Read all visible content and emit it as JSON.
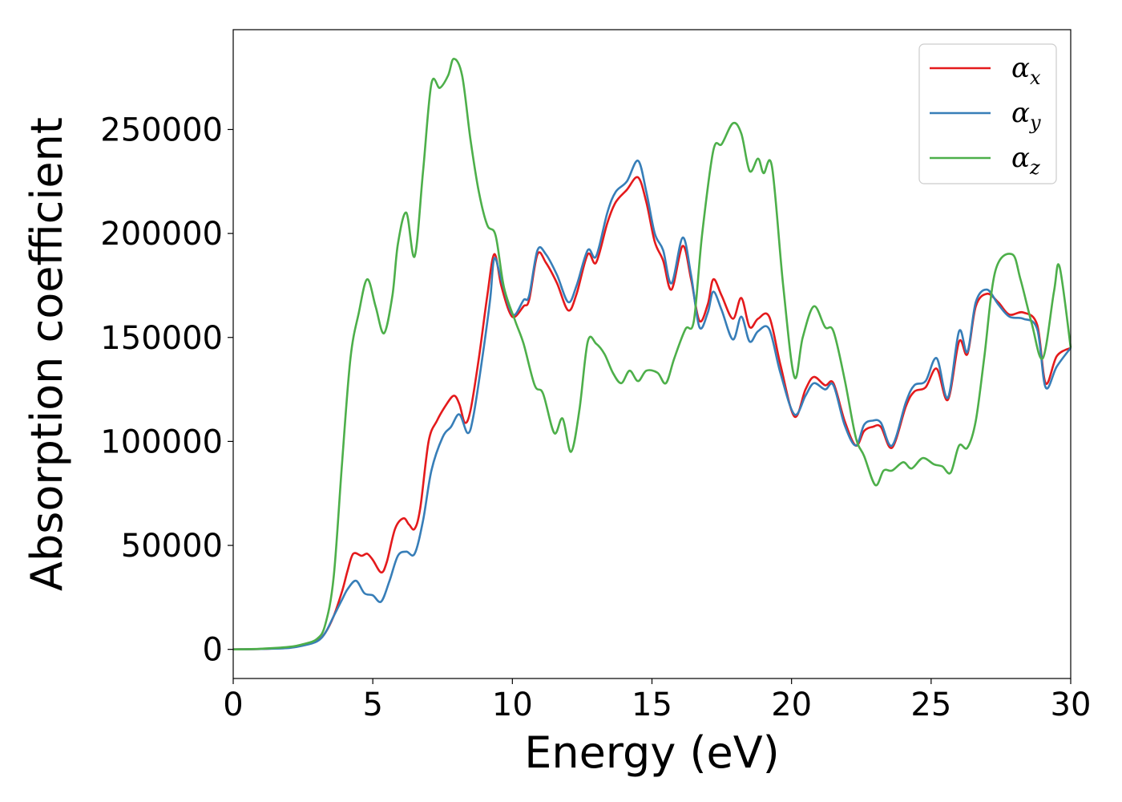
{
  "chart_data": {
    "type": "line",
    "xlabel": "Energy (eV)",
    "ylabel": "Absorption coefficient",
    "xlim": [
      0,
      30
    ],
    "ylim": [
      -14000,
      298000
    ],
    "xticks": [
      "0",
      "5",
      "10",
      "15",
      "20",
      "25",
      "30"
    ],
    "yticks": [
      "0",
      "50000",
      "100000",
      "150000",
      "200000",
      "250000"
    ],
    "grid": false,
    "legend_position": "top-right",
    "series": [
      {
        "name": "α_x",
        "label_main": "α",
        "label_sub": "x",
        "color": "#e41a1c",
        "points": [
          [
            0,
            0
          ],
          [
            1,
            200
          ],
          [
            2,
            800
          ],
          [
            2.5,
            2000
          ],
          [
            3,
            4000
          ],
          [
            3.3,
            8000
          ],
          [
            3.6,
            16000
          ],
          [
            3.9,
            28000
          ],
          [
            4.1,
            38000
          ],
          [
            4.3,
            46000
          ],
          [
            4.6,
            45000
          ],
          [
            4.8,
            46000
          ],
          [
            5.0,
            43000
          ],
          [
            5.3,
            37000
          ],
          [
            5.5,
            42000
          ],
          [
            5.8,
            58000
          ],
          [
            6.1,
            63000
          ],
          [
            6.3,
            60000
          ],
          [
            6.5,
            58000
          ],
          [
            6.7,
            68000
          ],
          [
            7.0,
            100000
          ],
          [
            7.3,
            110000
          ],
          [
            7.6,
            117000
          ],
          [
            7.9,
            122000
          ],
          [
            8.1,
            118000
          ],
          [
            8.3,
            109000
          ],
          [
            8.5,
            115000
          ],
          [
            8.8,
            140000
          ],
          [
            9.1,
            170000
          ],
          [
            9.35,
            190000
          ],
          [
            9.6,
            175000
          ],
          [
            9.9,
            162000
          ],
          [
            10.1,
            160000
          ],
          [
            10.4,
            165000
          ],
          [
            10.6,
            168000
          ],
          [
            10.9,
            190000
          ],
          [
            11.2,
            186000
          ],
          [
            11.6,
            176000
          ],
          [
            12.0,
            163000
          ],
          [
            12.3,
            171000
          ],
          [
            12.7,
            190000
          ],
          [
            13.0,
            186000
          ],
          [
            13.4,
            205000
          ],
          [
            13.7,
            215000
          ],
          [
            14.1,
            221000
          ],
          [
            14.5,
            227000
          ],
          [
            14.8,
            215000
          ],
          [
            15.1,
            196000
          ],
          [
            15.4,
            187000
          ],
          [
            15.7,
            173000
          ],
          [
            16.1,
            194000
          ],
          [
            16.4,
            178000
          ],
          [
            16.7,
            158000
          ],
          [
            17.0,
            166000
          ],
          [
            17.2,
            178000
          ],
          [
            17.5,
            170000
          ],
          [
            17.9,
            159000
          ],
          [
            18.2,
            169000
          ],
          [
            18.5,
            155000
          ],
          [
            18.8,
            159000
          ],
          [
            19.2,
            160000
          ],
          [
            19.6,
            137000
          ],
          [
            20.1,
            112000
          ],
          [
            20.5,
            125000
          ],
          [
            20.8,
            131000
          ],
          [
            21.2,
            127000
          ],
          [
            21.5,
            128000
          ],
          [
            21.9,
            110000
          ],
          [
            22.3,
            98000
          ],
          [
            22.6,
            105000
          ],
          [
            22.9,
            107000
          ],
          [
            23.2,
            107000
          ],
          [
            23.6,
            97000
          ],
          [
            24.1,
            117000
          ],
          [
            24.4,
            124000
          ],
          [
            24.8,
            126000
          ],
          [
            25.2,
            135000
          ],
          [
            25.6,
            120000
          ],
          [
            26.0,
            148000
          ],
          [
            26.3,
            142000
          ],
          [
            26.6,
            165000
          ],
          [
            27.0,
            171000
          ],
          [
            27.4,
            167000
          ],
          [
            27.8,
            161000
          ],
          [
            28.3,
            162000
          ],
          [
            28.8,
            156000
          ],
          [
            29.1,
            128000
          ],
          [
            29.5,
            141000
          ],
          [
            30.0,
            145000
          ]
        ]
      },
      {
        "name": "α_y",
        "label_main": "α",
        "label_sub": "y",
        "color": "#377eb8",
        "points": [
          [
            0,
            0
          ],
          [
            1,
            200
          ],
          [
            2,
            700
          ],
          [
            2.5,
            1800
          ],
          [
            3,
            3800
          ],
          [
            3.3,
            8000
          ],
          [
            3.6,
            16000
          ],
          [
            3.9,
            24000
          ],
          [
            4.1,
            29000
          ],
          [
            4.4,
            33000
          ],
          [
            4.7,
            27000
          ],
          [
            5.0,
            26000
          ],
          [
            5.3,
            23000
          ],
          [
            5.6,
            33000
          ],
          [
            5.9,
            45000
          ],
          [
            6.2,
            47000
          ],
          [
            6.5,
            46000
          ],
          [
            6.8,
            62000
          ],
          [
            7.1,
            86000
          ],
          [
            7.5,
            102000
          ],
          [
            7.8,
            107000
          ],
          [
            8.1,
            113000
          ],
          [
            8.4,
            104000
          ],
          [
            8.6,
            112000
          ],
          [
            8.9,
            138000
          ],
          [
            9.2,
            168000
          ],
          [
            9.35,
            188000
          ],
          [
            9.6,
            178000
          ],
          [
            9.9,
            164000
          ],
          [
            10.1,
            161000
          ],
          [
            10.4,
            168000
          ],
          [
            10.6,
            170000
          ],
          [
            10.9,
            192000
          ],
          [
            11.2,
            190000
          ],
          [
            11.6,
            180000
          ],
          [
            12.0,
            167000
          ],
          [
            12.3,
            175000
          ],
          [
            12.7,
            192000
          ],
          [
            13.0,
            189000
          ],
          [
            13.4,
            210000
          ],
          [
            13.7,
            220000
          ],
          [
            14.1,
            225000
          ],
          [
            14.5,
            235000
          ],
          [
            14.8,
            220000
          ],
          [
            15.1,
            200000
          ],
          [
            15.4,
            192000
          ],
          [
            15.7,
            176000
          ],
          [
            16.1,
            198000
          ],
          [
            16.4,
            180000
          ],
          [
            16.7,
            155000
          ],
          [
            17.0,
            162000
          ],
          [
            17.2,
            172000
          ],
          [
            17.5,
            163000
          ],
          [
            17.9,
            149000
          ],
          [
            18.2,
            160000
          ],
          [
            18.5,
            148000
          ],
          [
            18.8,
            153000
          ],
          [
            19.2,
            154000
          ],
          [
            19.6,
            133000
          ],
          [
            20.1,
            113000
          ],
          [
            20.5,
            122000
          ],
          [
            20.8,
            128000
          ],
          [
            21.2,
            125000
          ],
          [
            21.5,
            127000
          ],
          [
            21.9,
            108000
          ],
          [
            22.3,
            98000
          ],
          [
            22.6,
            108000
          ],
          [
            22.9,
            110000
          ],
          [
            23.2,
            109000
          ],
          [
            23.6,
            98000
          ],
          [
            24.1,
            119000
          ],
          [
            24.4,
            127000
          ],
          [
            24.8,
            129000
          ],
          [
            25.2,
            140000
          ],
          [
            25.6,
            121000
          ],
          [
            26.0,
            153000
          ],
          [
            26.3,
            143000
          ],
          [
            26.6,
            167000
          ],
          [
            27.0,
            173000
          ],
          [
            27.4,
            166000
          ],
          [
            27.8,
            160000
          ],
          [
            28.3,
            159000
          ],
          [
            28.8,
            154000
          ],
          [
            29.1,
            126000
          ],
          [
            29.5,
            136000
          ],
          [
            30.0,
            145000
          ]
        ]
      },
      {
        "name": "α_z",
        "label_main": "α",
        "label_sub": "z",
        "color": "#4daf4a",
        "points": [
          [
            0,
            0
          ],
          [
            1,
            300
          ],
          [
            2,
            1200
          ],
          [
            2.5,
            2500
          ],
          [
            3,
            5000
          ],
          [
            3.3,
            12000
          ],
          [
            3.6,
            35000
          ],
          [
            3.9,
            90000
          ],
          [
            4.2,
            140000
          ],
          [
            4.5,
            162000
          ],
          [
            4.8,
            178000
          ],
          [
            5.1,
            165000
          ],
          [
            5.4,
            152000
          ],
          [
            5.7,
            170000
          ],
          [
            5.9,
            195000
          ],
          [
            6.2,
            210000
          ],
          [
            6.5,
            189000
          ],
          [
            6.8,
            230000
          ],
          [
            7.1,
            272000
          ],
          [
            7.4,
            270000
          ],
          [
            7.7,
            276000
          ],
          [
            7.9,
            284000
          ],
          [
            8.2,
            276000
          ],
          [
            8.5,
            245000
          ],
          [
            8.8,
            220000
          ],
          [
            9.1,
            204000
          ],
          [
            9.4,
            199000
          ],
          [
            9.7,
            174000
          ],
          [
            10.1,
            158000
          ],
          [
            10.4,
            147000
          ],
          [
            10.8,
            127000
          ],
          [
            11.1,
            123000
          ],
          [
            11.5,
            104000
          ],
          [
            11.8,
            111000
          ],
          [
            12.1,
            95000
          ],
          [
            12.4,
            115000
          ],
          [
            12.7,
            148000
          ],
          [
            13.0,
            147000
          ],
          [
            13.3,
            142000
          ],
          [
            13.6,
            133000
          ],
          [
            13.9,
            128000
          ],
          [
            14.2,
            134000
          ],
          [
            14.5,
            129000
          ],
          [
            14.8,
            134000
          ],
          [
            15.2,
            133000
          ],
          [
            15.5,
            128000
          ],
          [
            15.8,
            140000
          ],
          [
            16.2,
            154000
          ],
          [
            16.5,
            158000
          ],
          [
            16.8,
            200000
          ],
          [
            17.2,
            240000
          ],
          [
            17.5,
            243000
          ],
          [
            17.9,
            253000
          ],
          [
            18.2,
            248000
          ],
          [
            18.5,
            230000
          ],
          [
            18.8,
            236000
          ],
          [
            19.0,
            229000
          ],
          [
            19.3,
            232000
          ],
          [
            19.7,
            175000
          ],
          [
            20.1,
            131000
          ],
          [
            20.4,
            150000
          ],
          [
            20.8,
            165000
          ],
          [
            21.2,
            155000
          ],
          [
            21.5,
            153000
          ],
          [
            21.9,
            130000
          ],
          [
            22.3,
            102000
          ],
          [
            22.6,
            93000
          ],
          [
            23.0,
            79000
          ],
          [
            23.3,
            86000
          ],
          [
            23.6,
            86000
          ],
          [
            24.0,
            90000
          ],
          [
            24.3,
            87000
          ],
          [
            24.7,
            92000
          ],
          [
            25.1,
            89000
          ],
          [
            25.4,
            88000
          ],
          [
            25.7,
            85000
          ],
          [
            26.0,
            98000
          ],
          [
            26.3,
            97000
          ],
          [
            26.6,
            110000
          ],
          [
            26.9,
            140000
          ],
          [
            27.3,
            182000
          ],
          [
            27.9,
            190000
          ],
          [
            28.2,
            178000
          ],
          [
            28.6,
            157000
          ],
          [
            29.0,
            140000
          ],
          [
            29.4,
            172000
          ],
          [
            29.6,
            184000
          ],
          [
            30.0,
            145000
          ]
        ]
      }
    ]
  }
}
